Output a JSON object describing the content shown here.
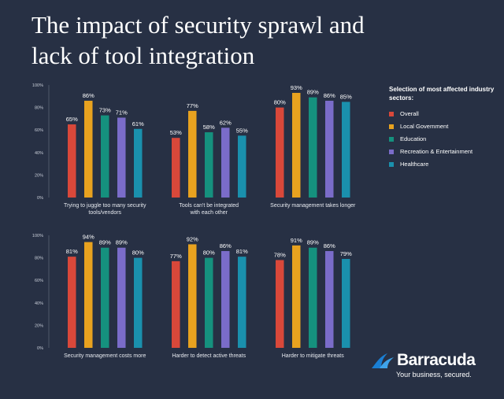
{
  "title_line1": "The impact of security sprawl and",
  "title_line2": "lack of tool integration",
  "legend": {
    "title": "Selection of most affected industry sectors:",
    "items": [
      {
        "name": "Overall",
        "color": "#d9483a"
      },
      {
        "name": "Local Government",
        "color": "#e8a21f"
      },
      {
        "name": "Education",
        "color": "#15917e"
      },
      {
        "name": "Recreation & Entertainment",
        "color": "#7a6cc9"
      },
      {
        "name": "Healthcare",
        "color": "#1a90ad"
      }
    ]
  },
  "brand": {
    "name": "Barracuda",
    "tagline": "Your business, secured.",
    "icon": "barracuda-wave-logo"
  },
  "chart_data": {
    "type": "bar",
    "ylim": [
      0,
      100
    ],
    "y_ticks": [
      "0%",
      "20%",
      "40%",
      "60%",
      "80%",
      "100%"
    ],
    "series_names": [
      "Overall",
      "Local Government",
      "Education",
      "Recreation & Entertainment",
      "Healthcare"
    ],
    "panels": [
      {
        "category": [
          "Trying to juggle too many security",
          "tools/vendors"
        ],
        "values": [
          65,
          86,
          73,
          71,
          61
        ]
      },
      {
        "category": [
          "Tools can't be integrated",
          "with each other"
        ],
        "values": [
          53,
          77,
          58,
          62,
          55
        ]
      },
      {
        "category": [
          "Security management takes longer"
        ],
        "values": [
          80,
          93,
          89,
          86,
          85
        ]
      },
      {
        "category": [
          "Security management costs more"
        ],
        "values": [
          81,
          94,
          89,
          89,
          80
        ]
      },
      {
        "category": [
          "Harder to detect active threats"
        ],
        "values": [
          77,
          92,
          80,
          86,
          81
        ]
      },
      {
        "category": [
          "Harder to mitigate threats"
        ],
        "values": [
          78,
          91,
          89,
          86,
          79
        ]
      }
    ]
  }
}
